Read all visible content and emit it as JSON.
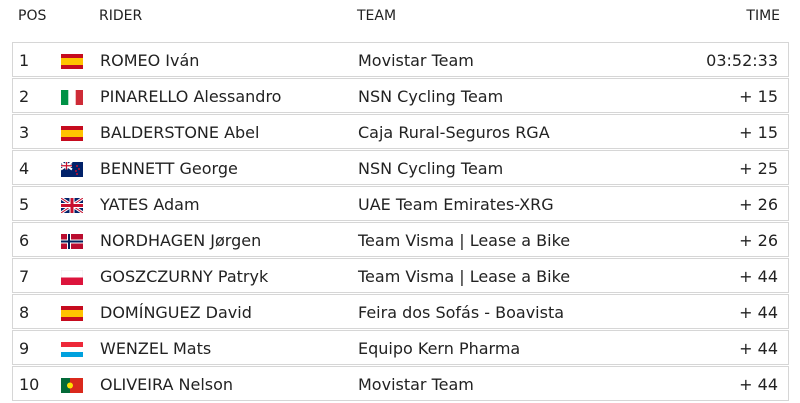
{
  "table": {
    "header": [
      "POS",
      "RIDER",
      "TEAM",
      "TIME"
    ],
    "rows": [
      [
        "1",
        "ROMEO Iván",
        "Movistar Team",
        "03:52:33"
      ],
      [
        "2",
        "PINARELLO Alessandro",
        "NSN Cycling Team",
        "+ 15"
      ],
      [
        "3",
        "BALDERSTONE Abel",
        "Caja Rural-Seguros RGA",
        "+ 15"
      ],
      [
        "4",
        "BENNETT George",
        "NSN Cycling Team",
        "+ 25"
      ],
      [
        "5",
        "YATES Adam",
        "UAE Team Emirates-XRG",
        "+ 26"
      ],
      [
        "6",
        "NORDHAGEN Jørgen",
        "Team Visma | Lease a Bike",
        "+ 26"
      ],
      [
        "7",
        "GOSZCZURNY Patryk",
        "Team Visma | Lease a Bike",
        "+ 44"
      ],
      [
        "8",
        "DOMÍNGUEZ David",
        "Feira dos Sofás - Boavista",
        "+ 44"
      ],
      [
        "9",
        "WENZEL Mats",
        "Equipo Kern Pharma",
        "+ 44"
      ],
      [
        "10",
        "OLIVEIRA Nelson",
        "Movistar Team",
        "+ 44"
      ]
    ]
  }
}
